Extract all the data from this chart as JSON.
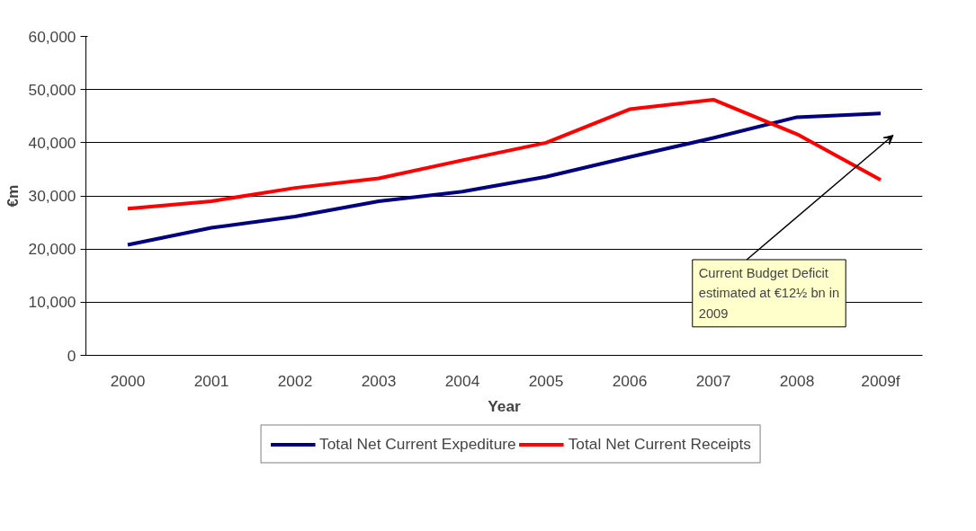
{
  "chart_data": {
    "type": "line",
    "xlabel": "Year",
    "ylabel": "€m",
    "categories": [
      "2000",
      "2001",
      "2002",
      "2003",
      "2004",
      "2005",
      "2006",
      "2007",
      "2008",
      "2009f"
    ],
    "series": [
      {
        "name": "Total Net Current Expediture",
        "color": "#000080",
        "values": [
          20800,
          24000,
          26100,
          29000,
          30800,
          33600,
          37300,
          40900,
          44800,
          45500
        ]
      },
      {
        "name": "Total Net Current Receipts",
        "color": "#ff0000",
        "values": [
          27600,
          29000,
          31500,
          33300,
          36700,
          40000,
          46300,
          48100,
          41600,
          33000
        ]
      }
    ],
    "ylim": [
      0,
      60000
    ],
    "yticks": [
      {
        "value": 0,
        "label": "0"
      },
      {
        "value": 10000,
        "label": "10,000"
      },
      {
        "value": 20000,
        "label": "20,000"
      },
      {
        "value": 30000,
        "label": "30,000"
      },
      {
        "value": 40000,
        "label": "40,000"
      },
      {
        "value": 50000,
        "label": "50,000"
      },
      {
        "value": 60000,
        "label": "60,000"
      }
    ],
    "grid": "y",
    "legend": "bottom",
    "marker": "none",
    "line_style": "solid",
    "annotations": [
      "Current Budget Deficit estimated at €12½ bn in 2009"
    ]
  }
}
